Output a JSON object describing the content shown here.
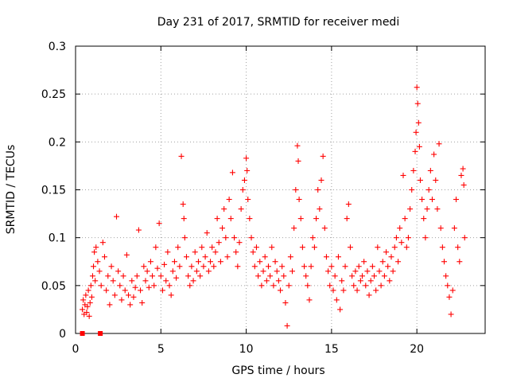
{
  "chart_data": {
    "type": "scatter",
    "title": "Day 231 of 2017, SRMTID for receiver medi",
    "xlabel": "GPS time / hours",
    "ylabel": "SRMTID / TECUs",
    "xlim": [
      0,
      24
    ],
    "ylim": [
      0,
      0.3
    ],
    "x_ticks": [
      0,
      5,
      10,
      15,
      20
    ],
    "x_tick_labels": [
      "0",
      "5",
      "10",
      "15",
      "20"
    ],
    "y_ticks": [
      0,
      0.05,
      0.1,
      0.15,
      0.2,
      0.25,
      0.3
    ],
    "y_tick_labels": [
      "0",
      "0.05",
      "0.1",
      "0.15",
      "0.2",
      "0.25",
      "0.3"
    ],
    "grid": true,
    "marker": "plus",
    "color": "#ff0000",
    "zero_markers": [
      {
        "x": 0.4,
        "y": 0
      },
      {
        "x": 1.45,
        "y": 0
      }
    ],
    "series": [
      {
        "name": "SRMTID",
        "points": [
          [
            0.4,
            0.025
          ],
          [
            0.45,
            0.035
          ],
          [
            0.5,
            0.02
          ],
          [
            0.55,
            0.03
          ],
          [
            0.6,
            0.04
          ],
          [
            0.65,
            0.022
          ],
          [
            0.7,
            0.028
          ],
          [
            0.75,
            0.045
          ],
          [
            0.8,
            0.018
          ],
          [
            0.85,
            0.032
          ],
          [
            0.9,
            0.05
          ],
          [
            0.95,
            0.038
          ],
          [
            1.0,
            0.06
          ],
          [
            1.05,
            0.07
          ],
          [
            1.1,
            0.085
          ],
          [
            1.15,
            0.055
          ],
          [
            1.2,
            0.09
          ],
          [
            1.3,
            0.075
          ],
          [
            1.4,
            0.065
          ],
          [
            1.5,
            0.05
          ],
          [
            1.6,
            0.095
          ],
          [
            1.7,
            0.08
          ],
          [
            1.8,
            0.045
          ],
          [
            1.9,
            0.06
          ],
          [
            2.0,
            0.03
          ],
          [
            2.1,
            0.07
          ],
          [
            2.2,
            0.055
          ],
          [
            2.3,
            0.04
          ],
          [
            2.4,
            0.122
          ],
          [
            2.5,
            0.065
          ],
          [
            2.6,
            0.05
          ],
          [
            2.7,
            0.035
          ],
          [
            2.8,
            0.06
          ],
          [
            2.9,
            0.045
          ],
          [
            3.0,
            0.082
          ],
          [
            3.1,
            0.04
          ],
          [
            3.2,
            0.03
          ],
          [
            3.3,
            0.055
          ],
          [
            3.4,
            0.038
          ],
          [
            3.5,
            0.048
          ],
          [
            3.6,
            0.06
          ],
          [
            3.7,
            0.108
          ],
          [
            3.8,
            0.045
          ],
          [
            3.9,
            0.032
          ],
          [
            4.0,
            0.07
          ],
          [
            4.1,
            0.055
          ],
          [
            4.2,
            0.065
          ],
          [
            4.3,
            0.048
          ],
          [
            4.4,
            0.075
          ],
          [
            4.5,
            0.06
          ],
          [
            4.6,
            0.05
          ],
          [
            4.7,
            0.09
          ],
          [
            4.8,
            0.068
          ],
          [
            4.9,
            0.115
          ],
          [
            5.0,
            0.06
          ],
          [
            5.1,
            0.045
          ],
          [
            5.2,
            0.072
          ],
          [
            5.3,
            0.055
          ],
          [
            5.4,
            0.085
          ],
          [
            5.5,
            0.05
          ],
          [
            5.6,
            0.04
          ],
          [
            5.7,
            0.065
          ],
          [
            5.8,
            0.075
          ],
          [
            5.9,
            0.058
          ],
          [
            6.0,
            0.09
          ],
          [
            6.1,
            0.07
          ],
          [
            6.2,
            0.185
          ],
          [
            6.3,
            0.135
          ],
          [
            6.35,
            0.12
          ],
          [
            6.4,
            0.1
          ],
          [
            6.5,
            0.08
          ],
          [
            6.6,
            0.06
          ],
          [
            6.7,
            0.05
          ],
          [
            6.8,
            0.07
          ],
          [
            6.9,
            0.055
          ],
          [
            7.0,
            0.085
          ],
          [
            7.1,
            0.065
          ],
          [
            7.2,
            0.075
          ],
          [
            7.3,
            0.06
          ],
          [
            7.4,
            0.09
          ],
          [
            7.5,
            0.07
          ],
          [
            7.6,
            0.08
          ],
          [
            7.7,
            0.105
          ],
          [
            7.8,
            0.065
          ],
          [
            7.9,
            0.075
          ],
          [
            8.0,
            0.09
          ],
          [
            8.1,
            0.07
          ],
          [
            8.2,
            0.085
          ],
          [
            8.3,
            0.12
          ],
          [
            8.4,
            0.095
          ],
          [
            8.5,
            0.075
          ],
          [
            8.6,
            0.11
          ],
          [
            8.7,
            0.13
          ],
          [
            8.8,
            0.1
          ],
          [
            8.9,
            0.08
          ],
          [
            9.0,
            0.14
          ],
          [
            9.1,
            0.12
          ],
          [
            9.2,
            0.168
          ],
          [
            9.3,
            0.1
          ],
          [
            9.4,
            0.085
          ],
          [
            9.5,
            0.07
          ],
          [
            9.6,
            0.095
          ],
          [
            9.7,
            0.13
          ],
          [
            9.8,
            0.15
          ],
          [
            9.9,
            0.16
          ],
          [
            10.0,
            0.183
          ],
          [
            10.05,
            0.17
          ],
          [
            10.1,
            0.14
          ],
          [
            10.2,
            0.12
          ],
          [
            10.3,
            0.1
          ],
          [
            10.4,
            0.085
          ],
          [
            10.5,
            0.07
          ],
          [
            10.6,
            0.09
          ],
          [
            10.7,
            0.06
          ],
          [
            10.8,
            0.075
          ],
          [
            10.9,
            0.05
          ],
          [
            11.0,
            0.065
          ],
          [
            11.1,
            0.08
          ],
          [
            11.2,
            0.055
          ],
          [
            11.3,
            0.07
          ],
          [
            11.4,
            0.06
          ],
          [
            11.5,
            0.09
          ],
          [
            11.6,
            0.05
          ],
          [
            11.7,
            0.075
          ],
          [
            11.8,
            0.065
          ],
          [
            11.9,
            0.055
          ],
          [
            12.0,
            0.045
          ],
          [
            12.1,
            0.07
          ],
          [
            12.2,
            0.06
          ],
          [
            12.3,
            0.032
          ],
          [
            12.4,
            0.008
          ],
          [
            12.5,
            0.05
          ],
          [
            12.6,
            0.08
          ],
          [
            12.7,
            0.065
          ],
          [
            12.8,
            0.11
          ],
          [
            12.9,
            0.15
          ],
          [
            13.0,
            0.196
          ],
          [
            13.05,
            0.18
          ],
          [
            13.1,
            0.14
          ],
          [
            13.2,
            0.12
          ],
          [
            13.3,
            0.09
          ],
          [
            13.4,
            0.07
          ],
          [
            13.5,
            0.06
          ],
          [
            13.6,
            0.05
          ],
          [
            13.7,
            0.035
          ],
          [
            13.8,
            0.07
          ],
          [
            13.9,
            0.1
          ],
          [
            14.0,
            0.09
          ],
          [
            14.1,
            0.12
          ],
          [
            14.2,
            0.15
          ],
          [
            14.3,
            0.13
          ],
          [
            14.4,
            0.16
          ],
          [
            14.5,
            0.185
          ],
          [
            14.6,
            0.11
          ],
          [
            14.7,
            0.08
          ],
          [
            14.8,
            0.065
          ],
          [
            14.9,
            0.05
          ],
          [
            15.0,
            0.07
          ],
          [
            15.1,
            0.045
          ],
          [
            15.2,
            0.06
          ],
          [
            15.3,
            0.035
          ],
          [
            15.4,
            0.08
          ],
          [
            15.5,
            0.025
          ],
          [
            15.6,
            0.055
          ],
          [
            15.7,
            0.045
          ],
          [
            15.8,
            0.07
          ],
          [
            15.9,
            0.12
          ],
          [
            16.0,
            0.135
          ],
          [
            16.1,
            0.09
          ],
          [
            16.2,
            0.06
          ],
          [
            16.3,
            0.05
          ],
          [
            16.4,
            0.065
          ],
          [
            16.5,
            0.045
          ],
          [
            16.6,
            0.07
          ],
          [
            16.7,
            0.055
          ],
          [
            16.8,
            0.06
          ],
          [
            16.9,
            0.075
          ],
          [
            17.0,
            0.05
          ],
          [
            17.1,
            0.065
          ],
          [
            17.2,
            0.04
          ],
          [
            17.3,
            0.055
          ],
          [
            17.4,
            0.07
          ],
          [
            17.5,
            0.06
          ],
          [
            17.6,
            0.045
          ],
          [
            17.7,
            0.09
          ],
          [
            17.8,
            0.065
          ],
          [
            17.9,
            0.05
          ],
          [
            18.0,
            0.075
          ],
          [
            18.1,
            0.06
          ],
          [
            18.2,
            0.085
          ],
          [
            18.3,
            0.07
          ],
          [
            18.4,
            0.055
          ],
          [
            18.5,
            0.08
          ],
          [
            18.6,
            0.065
          ],
          [
            18.7,
            0.09
          ],
          [
            18.8,
            0.1
          ],
          [
            18.9,
            0.075
          ],
          [
            19.0,
            0.11
          ],
          [
            19.1,
            0.095
          ],
          [
            19.2,
            0.165
          ],
          [
            19.3,
            0.12
          ],
          [
            19.4,
            0.09
          ],
          [
            19.5,
            0.1
          ],
          [
            19.6,
            0.13
          ],
          [
            19.7,
            0.15
          ],
          [
            19.8,
            0.17
          ],
          [
            19.9,
            0.19
          ],
          [
            19.95,
            0.21
          ],
          [
            20.0,
            0.257
          ],
          [
            20.05,
            0.24
          ],
          [
            20.1,
            0.22
          ],
          [
            20.15,
            0.195
          ],
          [
            20.2,
            0.16
          ],
          [
            20.3,
            0.14
          ],
          [
            20.4,
            0.12
          ],
          [
            20.5,
            0.1
          ],
          [
            20.6,
            0.13
          ],
          [
            20.7,
            0.15
          ],
          [
            20.8,
            0.17
          ],
          [
            20.9,
            0.14
          ],
          [
            21.0,
            0.187
          ],
          [
            21.1,
            0.16
          ],
          [
            21.2,
            0.13
          ],
          [
            21.3,
            0.198
          ],
          [
            21.4,
            0.11
          ],
          [
            21.5,
            0.09
          ],
          [
            21.6,
            0.075
          ],
          [
            21.7,
            0.06
          ],
          [
            21.8,
            0.05
          ],
          [
            21.9,
            0.038
          ],
          [
            22.0,
            0.02
          ],
          [
            22.1,
            0.045
          ],
          [
            22.2,
            0.11
          ],
          [
            22.3,
            0.14
          ],
          [
            22.4,
            0.09
          ],
          [
            22.5,
            0.075
          ],
          [
            22.6,
            0.165
          ],
          [
            22.7,
            0.172
          ],
          [
            22.75,
            0.155
          ],
          [
            22.8,
            0.1
          ]
        ]
      }
    ]
  }
}
